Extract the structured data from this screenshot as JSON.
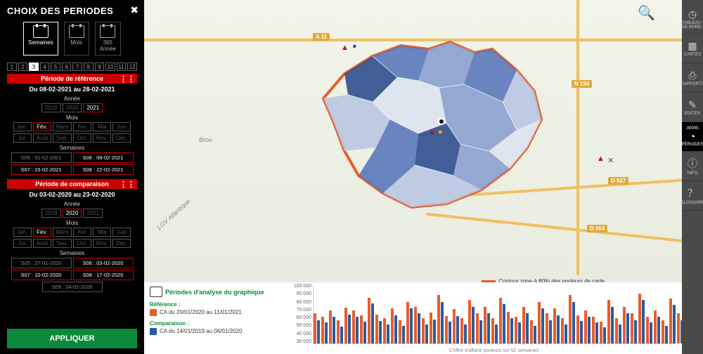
{
  "sidebar": {
    "title": "CHOIX DES PERIODES",
    "period_types": [
      {
        "label": "Semaines",
        "selected": true
      },
      {
        "label": "Mois",
        "selected": false
      },
      {
        "label": "Année",
        "icon_text": "365",
        "selected": false
      }
    ],
    "num_counts": {
      "selected": 3,
      "values": [
        1,
        2,
        3,
        4,
        5,
        6,
        7,
        8,
        9,
        10,
        11,
        12
      ]
    },
    "reference": {
      "header": "Période de référence",
      "range": "Du 08-02-2021 au 28-02-2021",
      "year_label": "Année",
      "years": [
        {
          "v": "2019",
          "sel": false
        },
        {
          "v": "2020",
          "sel": false
        },
        {
          "v": "2021",
          "sel": true
        }
      ],
      "month_label": "Mois",
      "months_r1": [
        {
          "v": "Jan.",
          "sel": false
        },
        {
          "v": "Fév.",
          "sel": true
        },
        {
          "v": "Mars",
          "sel": false
        },
        {
          "v": "Avr.",
          "sel": false
        },
        {
          "v": "Mai",
          "sel": false
        },
        {
          "v": "Juin",
          "sel": false
        }
      ],
      "months_r2": [
        {
          "v": "Jui.",
          "sel": false
        },
        {
          "v": "Août",
          "sel": false
        },
        {
          "v": "Sep.",
          "sel": false
        },
        {
          "v": "Oct.",
          "sel": false
        },
        {
          "v": "Nov.",
          "sel": false
        },
        {
          "v": "Déc.",
          "sel": false
        }
      ],
      "weeks_label": "Semaines",
      "weeks": [
        {
          "v": "S05 : 01-02-2021",
          "sel": false
        },
        {
          "v": "S06 : 08-02-2021",
          "sel": true
        },
        {
          "v": "S07 : 15-02-2021",
          "sel": true
        },
        {
          "v": "S08 : 22-02-2021",
          "sel": true
        }
      ]
    },
    "comparison": {
      "header": "Période de comparaison",
      "range": "Du 03-02-2020 au 23-02-2020",
      "year_label": "Année",
      "years": [
        {
          "v": "2019",
          "sel": false
        },
        {
          "v": "2020",
          "sel": true
        },
        {
          "v": "2021",
          "sel": false
        }
      ],
      "month_label": "Mois",
      "months_r1": [
        {
          "v": "Jan.",
          "sel": false
        },
        {
          "v": "Fév.",
          "sel": true
        },
        {
          "v": "Mars",
          "sel": false
        },
        {
          "v": "Avr.",
          "sel": false
        },
        {
          "v": "Mai",
          "sel": false
        },
        {
          "v": "Juin",
          "sel": false
        }
      ],
      "months_r2": [
        {
          "v": "Jui.",
          "sel": false
        },
        {
          "v": "Août",
          "sel": false
        },
        {
          "v": "Sep.",
          "sel": false
        },
        {
          "v": "Oct.",
          "sel": false
        },
        {
          "v": "Nov.",
          "sel": false
        },
        {
          "v": "Déc.",
          "sel": false
        }
      ],
      "weeks_label": "Semaines",
      "weeks": [
        {
          "v": "S05 : 27-01-2020",
          "sel": false
        },
        {
          "v": "S06 : 03-02-2020",
          "sel": true
        },
        {
          "v": "S07 : 10-02-2020",
          "sel": true
        },
        {
          "v": "S08 : 17-02-2020",
          "sel": true
        },
        {
          "v": "S09 : 24-02-2020",
          "sel": false
        }
      ]
    },
    "apply": "APPLIQUER"
  },
  "map": {
    "roads": [
      "A 11",
      "N 154",
      "D 927",
      "D 954"
    ],
    "places": [
      "Brou",
      "LGV Atlantique"
    ],
    "contour_caption": "Contour zone à 80% des porteurs de carte",
    "colors": {
      "outline": "#e85d2c",
      "fill_levels": [
        "#2f4e8d",
        "#5a78ba",
        "#8aa0cf",
        "#b9c7e2",
        "#dce3f0"
      ]
    }
  },
  "chart": {
    "header": "Périodes d'analyse du graphique",
    "ref_label": "Référence :",
    "ref_desc": "CA du 20/01/2020 au 11/01/2021",
    "cmp_label": "Comparaison :",
    "cmp_desc": "CA du 14/01/2019 au 06/01/2020",
    "caption": "Chiffre d'affaire porteurs sur 52 semaines",
    "ylim": [
      30000,
      100000
    ],
    "ytick_step": 10000,
    "yticks": [
      100000,
      90000,
      80000,
      70000,
      60000,
      50000,
      40000,
      30000
    ],
    "colors": {
      "ref": "#e85d2c",
      "cmp": "#2e5a9e",
      "grid": "#eeeeee",
      "bg": "#ffffff"
    },
    "type": "bar",
    "ref_vals": [
      66,
      62,
      70,
      58,
      73,
      70,
      64,
      85,
      65,
      60,
      72,
      58,
      80,
      74,
      60,
      67,
      88,
      63,
      71,
      60,
      82,
      66,
      74,
      60,
      85,
      68,
      62,
      74,
      58,
      80,
      66,
      72,
      60,
      88,
      64,
      70,
      62,
      56,
      82,
      60,
      74,
      66,
      90,
      62,
      70,
      58,
      84,
      66,
      72,
      60,
      86,
      63
    ],
    "cmp_vals": [
      58,
      55,
      62,
      50,
      65,
      62,
      56,
      78,
      57,
      53,
      64,
      51,
      72,
      66,
      53,
      59,
      80,
      56,
      63,
      53,
      74,
      58,
      66,
      53,
      77,
      60,
      55,
      66,
      51,
      72,
      58,
      64,
      53,
      80,
      57,
      62,
      55,
      49,
      74,
      53,
      66,
      58,
      82,
      55,
      62,
      51,
      76,
      58,
      64,
      53,
      78,
      56
    ]
  },
  "rail": {
    "items": [
      {
        "label": "TABLEAU DE BORD",
        "icon": "◷"
      },
      {
        "label": "CARTES",
        "icon": "▦"
      },
      {
        "label": "RAPPORTS",
        "icon": "⎙"
      },
      {
        "label": "EDITER",
        "icon": "✎"
      },
      {
        "label": "PÉRIODES",
        "icon": "◔",
        "sel": true,
        "prefix": ".00000."
      },
      {
        "label": "INFO",
        "icon": "ⓘ"
      },
      {
        "label": "GLOSSAIRE",
        "icon": "？"
      }
    ]
  }
}
